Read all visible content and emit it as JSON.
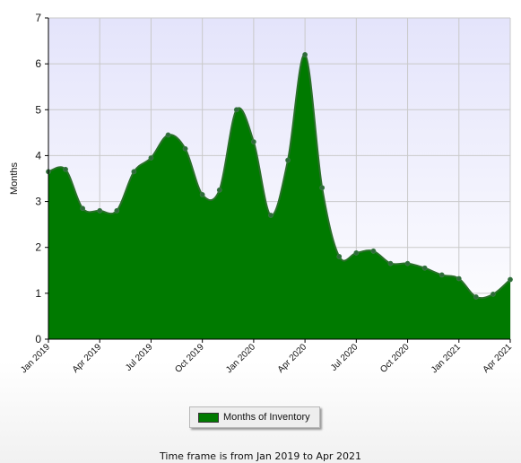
{
  "chart_data": {
    "type": "area",
    "ylabel": "Months",
    "xlabel": "",
    "ylim": [
      0,
      7
    ],
    "y_ticks": [
      "0",
      "1",
      "2",
      "3",
      "4",
      "5",
      "6",
      "7"
    ],
    "x_tick_labels": [
      "Jan 2019",
      "Apr 2019",
      "Jul 2019",
      "Oct 2019",
      "Jan 2020",
      "Apr 2020",
      "Jul 2020",
      "Oct 2020",
      "Jan 2021",
      "Apr 2021"
    ],
    "grid": true,
    "legend_position": "bottom-center",
    "series": [
      {
        "name": "Months of Inventory",
        "color": "#007a00",
        "x": [
          "Jan 2019",
          "Feb 2019",
          "Mar 2019",
          "Apr 2019",
          "May 2019",
          "Jun 2019",
          "Jul 2019",
          "Aug 2019",
          "Sep 2019",
          "Oct 2019",
          "Nov 2019",
          "Dec 2019",
          "Jan 2020",
          "Feb 2020",
          "Mar 2020",
          "Apr 2020",
          "May 2020",
          "Jun 2020",
          "Jul 2020",
          "Aug 2020",
          "Sep 2020",
          "Oct 2020",
          "Nov 2020",
          "Dec 2020",
          "Jan 2021",
          "Feb 2021",
          "Mar 2021",
          "Apr 2021"
        ],
        "values": [
          3.65,
          3.7,
          2.85,
          2.8,
          2.8,
          3.65,
          3.95,
          4.45,
          4.15,
          3.15,
          3.25,
          5.0,
          4.3,
          2.7,
          3.9,
          6.2,
          3.3,
          1.8,
          1.88,
          1.92,
          1.65,
          1.65,
          1.55,
          1.4,
          1.32,
          0.92,
          0.98,
          1.3
        ]
      }
    ]
  },
  "legend": {
    "label": "Months of Inventory"
  },
  "footer": {
    "text": "Time frame is from Jan 2019 to Apr 2021"
  }
}
